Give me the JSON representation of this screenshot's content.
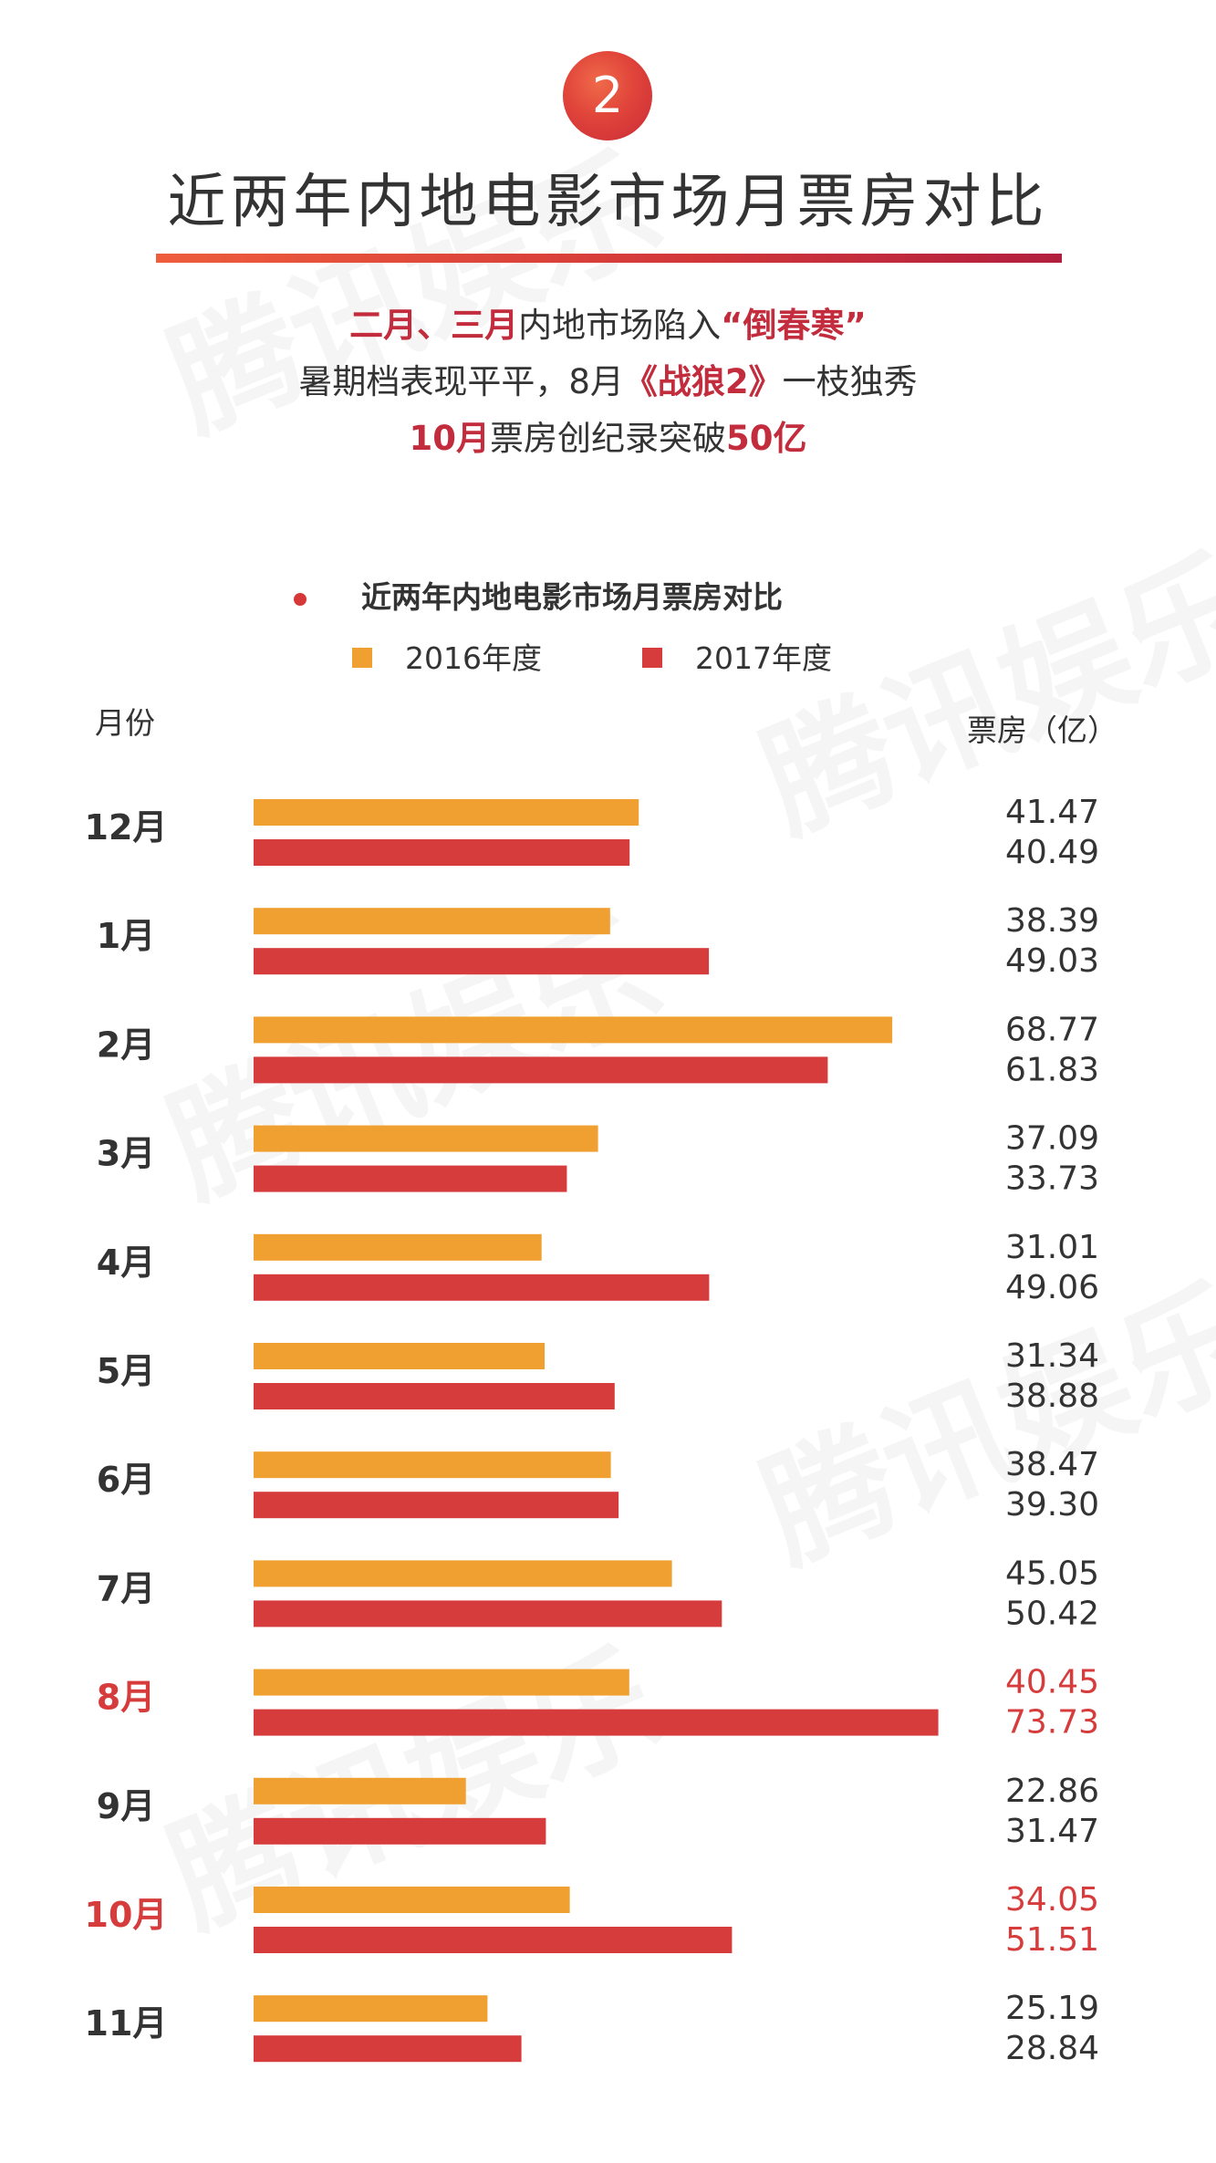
{
  "badge": "2",
  "title": "近两年内地电影市场月票房对比",
  "lines": {
    "l1_hl1": "二月、三月",
    "l1_t1": "内地市场陷入",
    "l1_hl2": "“倒春寒”",
    "l2_t1": "暑期档表现平平，8月",
    "l2_hl1": "《战狼2》",
    "l2_t2": "一枝独秀",
    "l3_hl1": "10月",
    "l3_t1": "票房创纪录突破",
    "l3_hl2": "50亿"
  },
  "watermark": "腾讯娱乐",
  "colors": {
    "series2016": "#f0a030",
    "series2017": "#d63c3c",
    "highlight": "#d63c3c",
    "text": "#333333"
  },
  "chart_data": {
    "type": "bar",
    "orientation": "horizontal",
    "title": "近两年内地电影市场月票房对比",
    "ylabel": "月份",
    "xlabel": "票房（亿）",
    "categories": [
      "12月",
      "1月",
      "2月",
      "3月",
      "4月",
      "5月",
      "6月",
      "7月",
      "8月",
      "9月",
      "10月",
      "11月"
    ],
    "series": [
      {
        "name": "2016年度",
        "values": [
          "41.47",
          "38.39",
          "68.77",
          "37.09",
          "31.01",
          "31.34",
          "38.47",
          "45.05",
          "40.45",
          "22.86",
          "34.05",
          "25.19"
        ]
      },
      {
        "name": "2017年度",
        "values": [
          "40.49",
          "49.03",
          "61.83",
          "33.73",
          "49.06",
          "38.88",
          "39.30",
          "50.42",
          "73.73",
          "31.47",
          "51.51",
          "28.84"
        ]
      }
    ],
    "highlighted_categories": [
      "8月",
      "10月"
    ],
    "legend": "top",
    "grid": false
  }
}
